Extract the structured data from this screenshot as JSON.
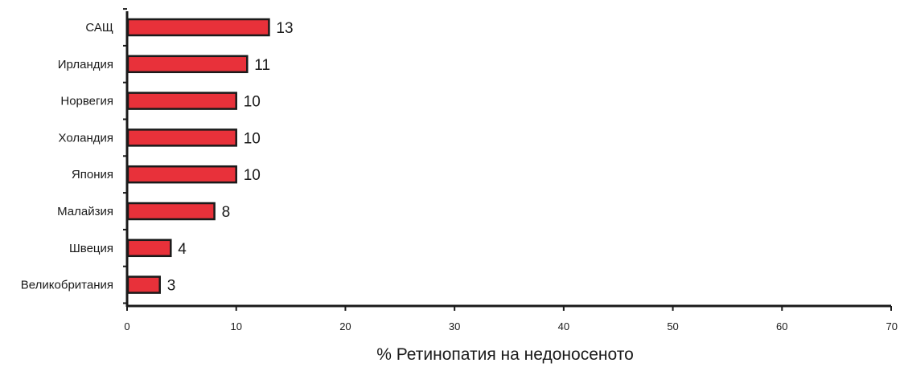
{
  "chart_data": {
    "type": "bar",
    "orientation": "horizontal",
    "categories": [
      "САЩ",
      "Ирландия",
      "Норвегия",
      "Холандия",
      "Япония",
      "Малайзия",
      "Швеция",
      "Великобритания"
    ],
    "values": [
      13,
      11,
      10,
      10,
      10,
      8,
      4,
      3
    ],
    "data_labels": [
      "13",
      "11",
      "10",
      "10",
      "10",
      "8",
      "4",
      "3"
    ],
    "xlabel": "% Ретинопатия на недоносеното",
    "ylabel": "",
    "xlim": [
      0,
      70
    ],
    "xticks": [
      0,
      10,
      20,
      30,
      40,
      50,
      60,
      70
    ],
    "xtick_labels": [
      "0",
      "10",
      "20",
      "30",
      "40",
      "50",
      "60",
      "70"
    ],
    "grid": false,
    "legend": "none",
    "colors": {
      "bar_fill": "#e8313a",
      "bar_stroke": "#1a1a1a",
      "axis": "#1a1a1a"
    }
  }
}
